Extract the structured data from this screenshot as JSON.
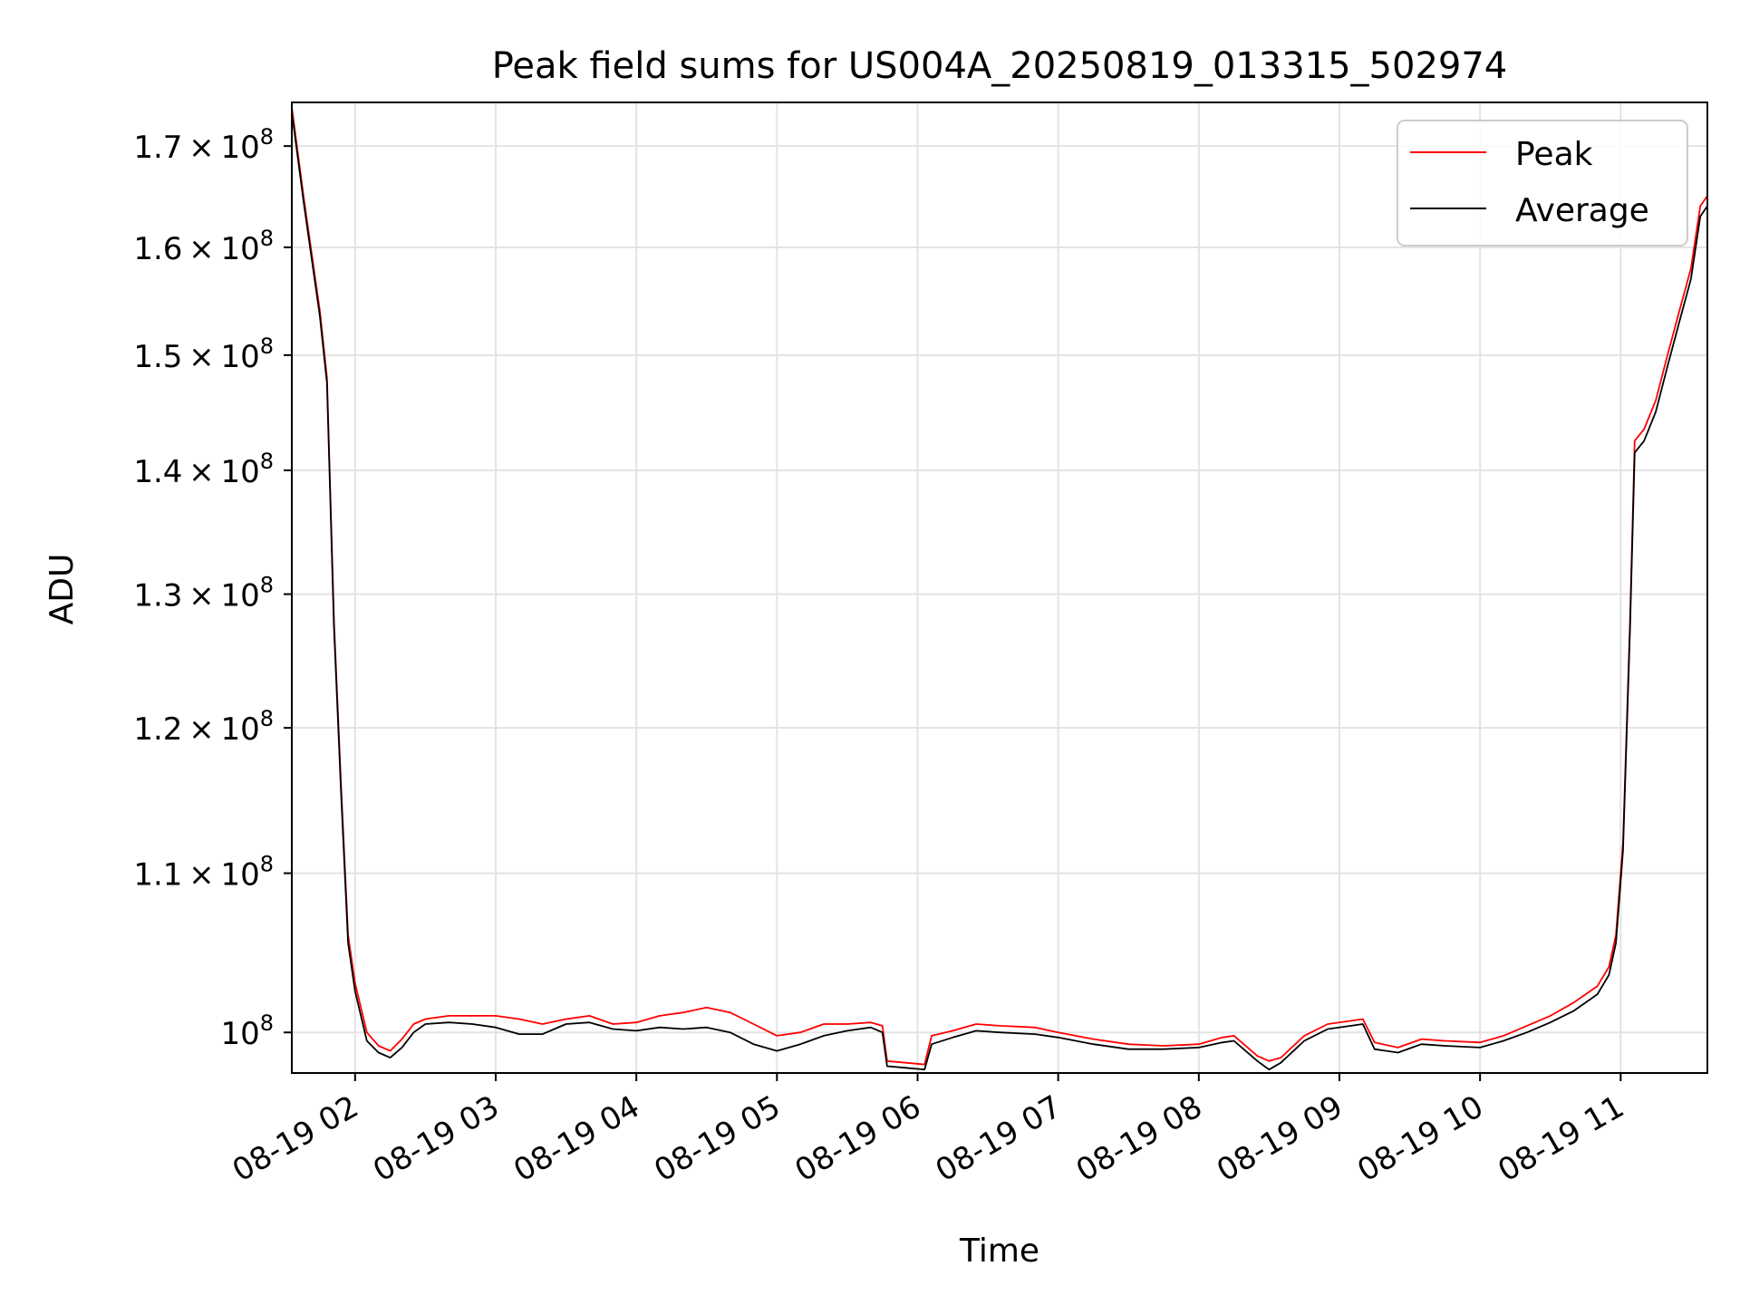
{
  "chart_data": {
    "type": "line",
    "title": "Peak field sums for US004A_20250819_013315_502974",
    "xlabel": "Time",
    "ylabel": "ADU",
    "yscale": "log",
    "grid": true,
    "legend_position": "top-right",
    "xlim": [
      "2025-08-19 01:33",
      "2025-08-19 11:37"
    ],
    "ylim": [
      97600000,
      174500000
    ],
    "x_ticks": [
      {
        "value": "2025-08-19 02:00",
        "label": "08-19 02"
      },
      {
        "value": "2025-08-19 03:00",
        "label": "08-19 03"
      },
      {
        "value": "2025-08-19 04:00",
        "label": "08-19 04"
      },
      {
        "value": "2025-08-19 05:00",
        "label": "08-19 05"
      },
      {
        "value": "2025-08-19 06:00",
        "label": "08-19 06"
      },
      {
        "value": "2025-08-19 07:00",
        "label": "08-19 07"
      },
      {
        "value": "2025-08-19 08:00",
        "label": "08-19 08"
      },
      {
        "value": "2025-08-19 09:00",
        "label": "08-19 09"
      },
      {
        "value": "2025-08-19 10:00",
        "label": "08-19 10"
      },
      {
        "value": "2025-08-19 11:00",
        "label": "08-19 11"
      }
    ],
    "y_ticks": [
      {
        "value": 100000000,
        "mantissa": "",
        "exponent": "8"
      },
      {
        "value": 110000000,
        "mantissa": "1.1",
        "exponent": "8"
      },
      {
        "value": 120000000,
        "mantissa": "1.2",
        "exponent": "8"
      },
      {
        "value": 130000000,
        "mantissa": "1.3",
        "exponent": "8"
      },
      {
        "value": 140000000,
        "mantissa": "1.4",
        "exponent": "8"
      },
      {
        "value": 150000000,
        "mantissa": "1.5",
        "exponent": "8"
      },
      {
        "value": 160000000,
        "mantissa": "1.6",
        "exponent": "8"
      },
      {
        "value": 170000000,
        "mantissa": "1.7",
        "exponent": "8"
      }
    ],
    "series": [
      {
        "name": "Peak",
        "color": "#ff0000",
        "points": [
          [
            "2025-08-19 01:33",
            174000000
          ],
          [
            "2025-08-19 01:38",
            165000000
          ],
          [
            "2025-08-19 01:45",
            154000000
          ],
          [
            "2025-08-19 01:48",
            148000000
          ],
          [
            "2025-08-19 01:51",
            128000000
          ],
          [
            "2025-08-19 01:54",
            116000000
          ],
          [
            "2025-08-19 01:57",
            106000000
          ],
          [
            "2025-08-19 02:00",
            103000000
          ],
          [
            "2025-08-19 02:05",
            100000000
          ],
          [
            "2025-08-19 02:10",
            99200000
          ],
          [
            "2025-08-19 02:15",
            98900000
          ],
          [
            "2025-08-19 02:20",
            99600000
          ],
          [
            "2025-08-19 02:25",
            100500000
          ],
          [
            "2025-08-19 02:30",
            100800000
          ],
          [
            "2025-08-19 02:40",
            101000000
          ],
          [
            "2025-08-19 02:50",
            101000000
          ],
          [
            "2025-08-19 03:00",
            101000000
          ],
          [
            "2025-08-19 03:10",
            100800000
          ],
          [
            "2025-08-19 03:20",
            100500000
          ],
          [
            "2025-08-19 03:30",
            100800000
          ],
          [
            "2025-08-19 03:40",
            101000000
          ],
          [
            "2025-08-19 03:50",
            100500000
          ],
          [
            "2025-08-19 04:00",
            100600000
          ],
          [
            "2025-08-19 04:10",
            101000000
          ],
          [
            "2025-08-19 04:20",
            101200000
          ],
          [
            "2025-08-19 04:30",
            101500000
          ],
          [
            "2025-08-19 04:40",
            101200000
          ],
          [
            "2025-08-19 04:50",
            100500000
          ],
          [
            "2025-08-19 05:00",
            99800000
          ],
          [
            "2025-08-19 05:10",
            100000000
          ],
          [
            "2025-08-19 05:20",
            100500000
          ],
          [
            "2025-08-19 05:30",
            100500000
          ],
          [
            "2025-08-19 05:40",
            100600000
          ],
          [
            "2025-08-19 05:45",
            100400000
          ],
          [
            "2025-08-19 05:47",
            98300000
          ],
          [
            "2025-08-19 05:55",
            98200000
          ],
          [
            "2025-08-19 06:03",
            98100000
          ],
          [
            "2025-08-19 06:06",
            99800000
          ],
          [
            "2025-08-19 06:15",
            100100000
          ],
          [
            "2025-08-19 06:25",
            100500000
          ],
          [
            "2025-08-19 06:35",
            100400000
          ],
          [
            "2025-08-19 06:50",
            100300000
          ],
          [
            "2025-08-19 07:00",
            100000000
          ],
          [
            "2025-08-19 07:15",
            99600000
          ],
          [
            "2025-08-19 07:30",
            99300000
          ],
          [
            "2025-08-19 07:45",
            99200000
          ],
          [
            "2025-08-19 08:00",
            99300000
          ],
          [
            "2025-08-19 08:10",
            99700000
          ],
          [
            "2025-08-19 08:15",
            99800000
          ],
          [
            "2025-08-19 08:25",
            98600000
          ],
          [
            "2025-08-19 08:30",
            98300000
          ],
          [
            "2025-08-19 08:35",
            98500000
          ],
          [
            "2025-08-19 08:45",
            99800000
          ],
          [
            "2025-08-19 08:55",
            100500000
          ],
          [
            "2025-08-19 09:05",
            100700000
          ],
          [
            "2025-08-19 09:10",
            100800000
          ],
          [
            "2025-08-19 09:15",
            99400000
          ],
          [
            "2025-08-19 09:25",
            99100000
          ],
          [
            "2025-08-19 09:35",
            99600000
          ],
          [
            "2025-08-19 09:45",
            99500000
          ],
          [
            "2025-08-19 10:00",
            99400000
          ],
          [
            "2025-08-19 10:10",
            99800000
          ],
          [
            "2025-08-19 10:20",
            100400000
          ],
          [
            "2025-08-19 10:30",
            101000000
          ],
          [
            "2025-08-19 10:40",
            101800000
          ],
          [
            "2025-08-19 10:50",
            102800000
          ],
          [
            "2025-08-19 10:55",
            104000000
          ],
          [
            "2025-08-19 10:58",
            106000000
          ],
          [
            "2025-08-19 11:01",
            112000000
          ],
          [
            "2025-08-19 11:04",
            128000000
          ],
          [
            "2025-08-19 11:06",
            142500000
          ],
          [
            "2025-08-19 11:10",
            143500000
          ],
          [
            "2025-08-19 11:15",
            146000000
          ],
          [
            "2025-08-19 11:20",
            150000000
          ],
          [
            "2025-08-19 11:25",
            154000000
          ],
          [
            "2025-08-19 11:30",
            158000000
          ],
          [
            "2025-08-19 11:34",
            164000000
          ],
          [
            "2025-08-19 11:37",
            165000000
          ]
        ]
      },
      {
        "name": "Average",
        "color": "#000000",
        "points": [
          [
            "2025-08-19 01:33",
            173500000
          ],
          [
            "2025-08-19 01:38",
            164500000
          ],
          [
            "2025-08-19 01:45",
            153500000
          ],
          [
            "2025-08-19 01:48",
            147500000
          ],
          [
            "2025-08-19 01:51",
            127500000
          ],
          [
            "2025-08-19 01:54",
            115500000
          ],
          [
            "2025-08-19 01:57",
            105500000
          ],
          [
            "2025-08-19 02:00",
            102500000
          ],
          [
            "2025-08-19 02:05",
            99500000
          ],
          [
            "2025-08-19 02:10",
            98800000
          ],
          [
            "2025-08-19 02:15",
            98500000
          ],
          [
            "2025-08-19 02:20",
            99100000
          ],
          [
            "2025-08-19 02:25",
            100000000
          ],
          [
            "2025-08-19 02:30",
            100500000
          ],
          [
            "2025-08-19 02:40",
            100600000
          ],
          [
            "2025-08-19 02:50",
            100500000
          ],
          [
            "2025-08-19 03:00",
            100300000
          ],
          [
            "2025-08-19 03:10",
            99900000
          ],
          [
            "2025-08-19 03:20",
            99900000
          ],
          [
            "2025-08-19 03:30",
            100500000
          ],
          [
            "2025-08-19 03:40",
            100600000
          ],
          [
            "2025-08-19 03:50",
            100200000
          ],
          [
            "2025-08-19 04:00",
            100100000
          ],
          [
            "2025-08-19 04:10",
            100300000
          ],
          [
            "2025-08-19 04:20",
            100200000
          ],
          [
            "2025-08-19 04:30",
            100300000
          ],
          [
            "2025-08-19 04:40",
            100000000
          ],
          [
            "2025-08-19 04:50",
            99300000
          ],
          [
            "2025-08-19 05:00",
            98900000
          ],
          [
            "2025-08-19 05:10",
            99300000
          ],
          [
            "2025-08-19 05:20",
            99800000
          ],
          [
            "2025-08-19 05:30",
            100100000
          ],
          [
            "2025-08-19 05:40",
            100300000
          ],
          [
            "2025-08-19 05:45",
            100000000
          ],
          [
            "2025-08-19 05:47",
            98000000
          ],
          [
            "2025-08-19 05:55",
            97900000
          ],
          [
            "2025-08-19 06:03",
            97800000
          ],
          [
            "2025-08-19 06:06",
            99300000
          ],
          [
            "2025-08-19 06:15",
            99700000
          ],
          [
            "2025-08-19 06:25",
            100100000
          ],
          [
            "2025-08-19 06:35",
            100000000
          ],
          [
            "2025-08-19 06:50",
            99900000
          ],
          [
            "2025-08-19 07:00",
            99700000
          ],
          [
            "2025-08-19 07:15",
            99300000
          ],
          [
            "2025-08-19 07:30",
            99000000
          ],
          [
            "2025-08-19 07:45",
            99000000
          ],
          [
            "2025-08-19 08:00",
            99100000
          ],
          [
            "2025-08-19 08:10",
            99400000
          ],
          [
            "2025-08-19 08:15",
            99500000
          ],
          [
            "2025-08-19 08:25",
            98300000
          ],
          [
            "2025-08-19 08:30",
            97800000
          ],
          [
            "2025-08-19 08:35",
            98200000
          ],
          [
            "2025-08-19 08:45",
            99500000
          ],
          [
            "2025-08-19 08:55",
            100200000
          ],
          [
            "2025-08-19 09:05",
            100400000
          ],
          [
            "2025-08-19 09:10",
            100500000
          ],
          [
            "2025-08-19 09:15",
            99000000
          ],
          [
            "2025-08-19 09:25",
            98800000
          ],
          [
            "2025-08-19 09:35",
            99300000
          ],
          [
            "2025-08-19 09:45",
            99200000
          ],
          [
            "2025-08-19 10:00",
            99100000
          ],
          [
            "2025-08-19 10:10",
            99500000
          ],
          [
            "2025-08-19 10:20",
            100000000
          ],
          [
            "2025-08-19 10:30",
            100600000
          ],
          [
            "2025-08-19 10:40",
            101300000
          ],
          [
            "2025-08-19 10:50",
            102300000
          ],
          [
            "2025-08-19 10:55",
            103500000
          ],
          [
            "2025-08-19 10:58",
            105500000
          ],
          [
            "2025-08-19 11:01",
            111500000
          ],
          [
            "2025-08-19 11:04",
            127500000
          ],
          [
            "2025-08-19 11:06",
            141500000
          ],
          [
            "2025-08-19 11:10",
            142500000
          ],
          [
            "2025-08-19 11:15",
            145000000
          ],
          [
            "2025-08-19 11:20",
            149000000
          ],
          [
            "2025-08-19 11:25",
            153000000
          ],
          [
            "2025-08-19 11:30",
            157000000
          ],
          [
            "2025-08-19 11:34",
            163000000
          ],
          [
            "2025-08-19 11:37",
            164000000
          ]
        ]
      }
    ]
  }
}
